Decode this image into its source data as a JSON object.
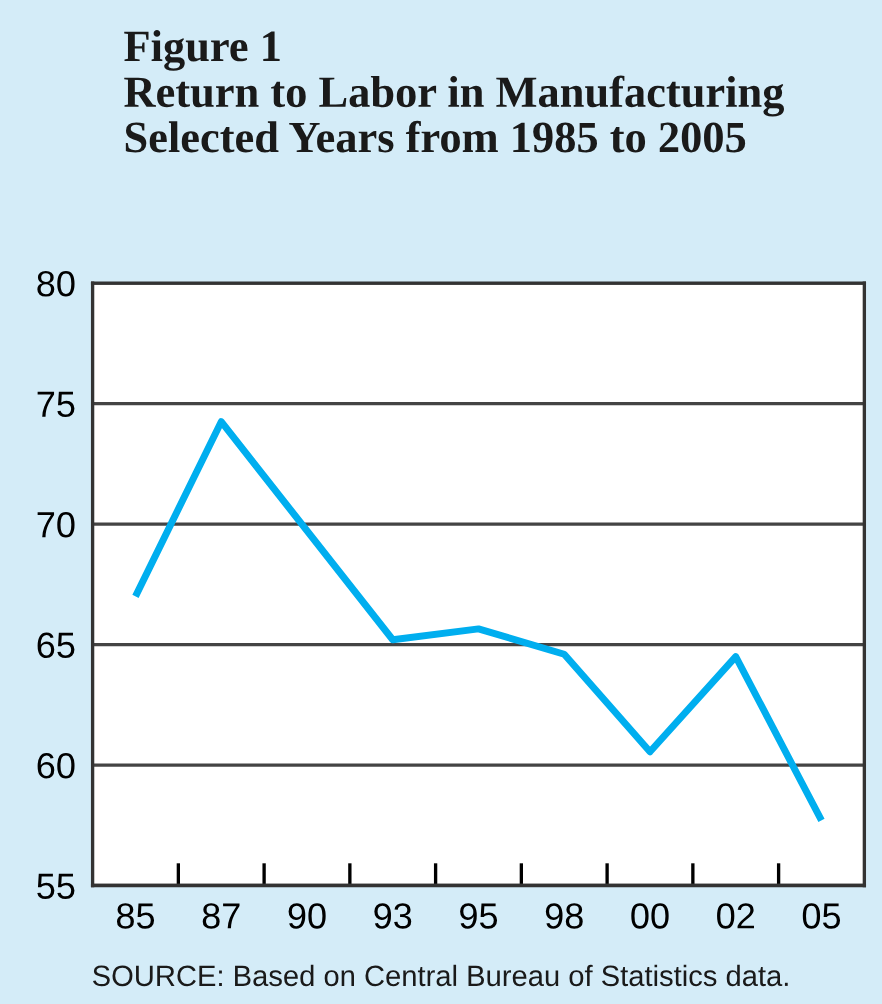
{
  "chart_data": {
    "type": "line",
    "title": "Figure 1\nReturn to Labor in Manufacturing\nSelected Years from 1985 to 2005",
    "categories": [
      "85",
      "87",
      "90",
      "93",
      "95",
      "98",
      "00",
      "02",
      "05"
    ],
    "values": [
      67.0,
      74.25,
      null,
      65.2,
      65.65,
      64.6,
      60.55,
      64.5,
      57.7
    ],
    "color": "#00aeef",
    "ylim": [
      55,
      80
    ],
    "yticks": [
      55,
      60,
      65,
      70,
      75,
      80
    ],
    "grid": "y",
    "annotations": [
      "SOURCE: Based on Central Bureau of Statistics data."
    ]
  }
}
